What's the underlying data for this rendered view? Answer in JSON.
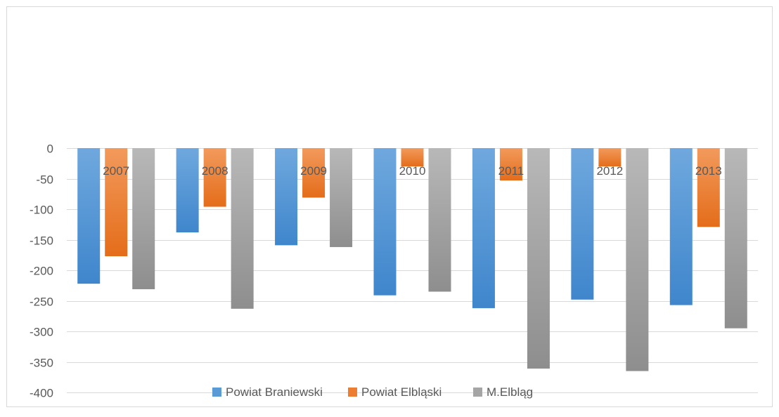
{
  "chart_data": {
    "type": "bar",
    "title": "",
    "xlabel": "",
    "ylabel": "",
    "categories": [
      "2007",
      "2008",
      "2009",
      "2010",
      "2011",
      "2012",
      "2013"
    ],
    "ylim": [
      -400,
      0
    ],
    "yticks": [
      0,
      -50,
      -100,
      -150,
      -200,
      -250,
      -300,
      -350,
      -400
    ],
    "grid": true,
    "legend_position": "bottom",
    "series": [
      {
        "name": "Powiat Braniewski",
        "color": "#5B9BD5",
        "values": [
          -222,
          -138,
          -159,
          -241,
          -262,
          -248,
          -257
        ]
      },
      {
        "name": "Powiat Elbląski",
        "color": "#ED7D31",
        "values": [
          -177,
          -96,
          -81,
          -30,
          -53,
          -30,
          -129
        ]
      },
      {
        "name": "M.Elbląg",
        "color": "#A5A5A5",
        "values": [
          -231,
          -263,
          -162,
          -235,
          -361,
          -365,
          -295
        ]
      }
    ]
  }
}
